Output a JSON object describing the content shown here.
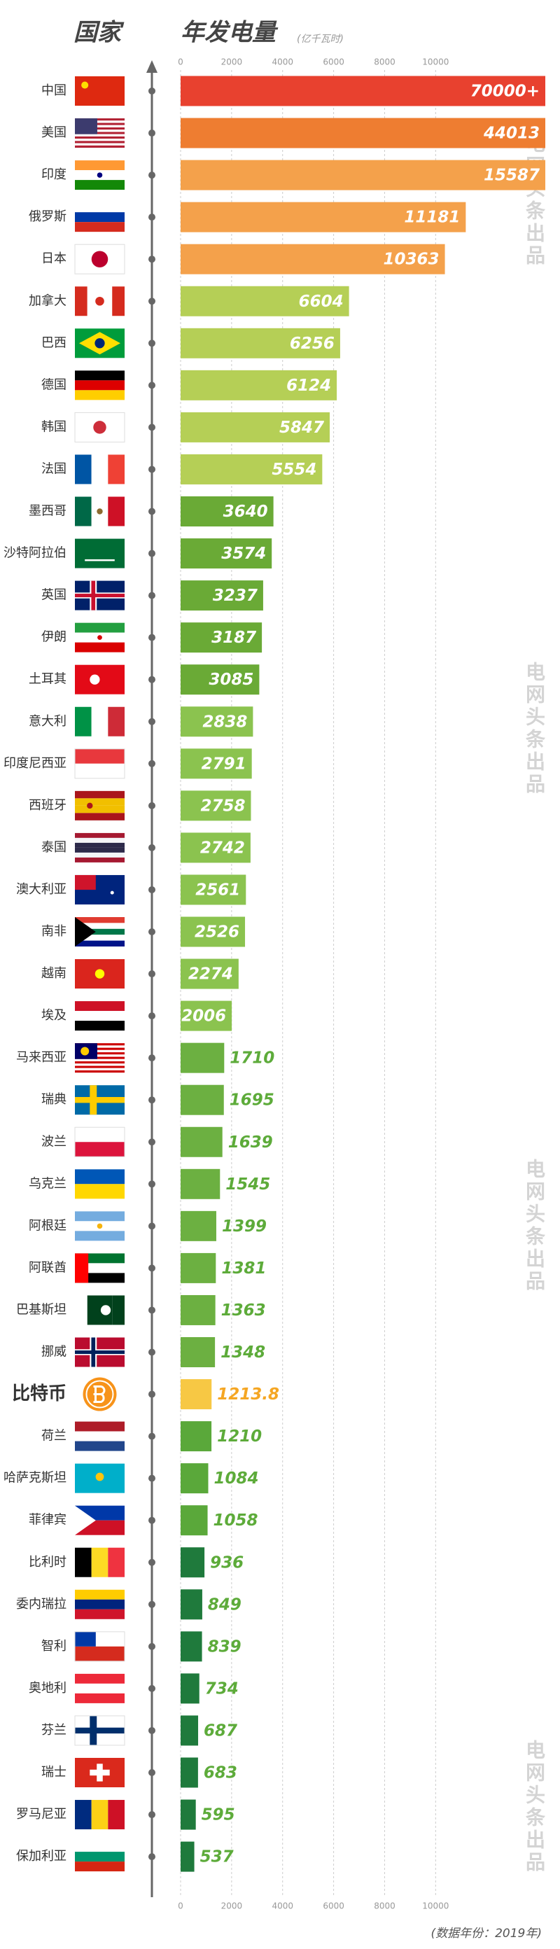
{
  "chart_data": {
    "type": "bar",
    "orientation": "horizontal",
    "title": "年发电量",
    "category_header": "国家",
    "unit": "(亿千瓦时)",
    "footnote": "(数据年份：2019年)",
    "watermark": "电网头条出品",
    "categories": [
      "中国",
      "美国",
      "印度",
      "俄罗斯",
      "日本",
      "加拿大",
      "巴西",
      "德国",
      "韩国",
      "法国",
      "墨西哥",
      "沙特阿拉伯",
      "英国",
      "伊朗",
      "土耳其",
      "意大利",
      "印度尼西亚",
      "西班牙",
      "泰国",
      "澳大利亚",
      "南非",
      "越南",
      "埃及",
      "马来西亚",
      "瑞典",
      "波兰",
      "乌克兰",
      "阿根廷",
      "阿联酋",
      "巴基斯坦",
      "挪威",
      "比特币",
      "荷兰",
      "哈萨克斯坦",
      "菲律宾",
      "比利时",
      "委内瑞拉",
      "智利",
      "奥地利",
      "芬兰",
      "瑞士",
      "罗马尼亚",
      "保加利亚"
    ],
    "values": [
      70000,
      44013,
      15587,
      11181,
      10363,
      6604,
      6256,
      6124,
      5847,
      5554,
      3640,
      3574,
      3237,
      3187,
      3085,
      2838,
      2791,
      2758,
      2742,
      2561,
      2526,
      2274,
      2006,
      1710,
      1695,
      1639,
      1545,
      1399,
      1381,
      1363,
      1348,
      1213.8,
      1210,
      1084,
      1058,
      936,
      849,
      839,
      734,
      687,
      683,
      595,
      537
    ],
    "value_labels": [
      "70000+",
      "44013",
      "15587",
      "11181",
      "10363",
      "6604",
      "6256",
      "6124",
      "5847",
      "5554",
      "3640",
      "3574",
      "3237",
      "3187",
      "3085",
      "2838",
      "2791",
      "2758",
      "2742",
      "2561",
      "2526",
      "2274",
      "2006",
      "1710",
      "1695",
      "1639",
      "1545",
      "1399",
      "1381",
      "1363",
      "1348",
      "1213.8",
      "1210",
      "1084",
      "1058",
      "936",
      "849",
      "839",
      "734",
      "687",
      "683",
      "595",
      "537"
    ],
    "colors": [
      "#e8412f",
      "#ee7d31",
      "#f4a14b",
      "#f4a14b",
      "#f4a14b",
      "#b5cf56",
      "#b5cf56",
      "#b5cf56",
      "#b5cf56",
      "#b5cf56",
      "#6aaa36",
      "#6aaa36",
      "#6aaa36",
      "#6aaa36",
      "#6aaa36",
      "#8bc34f",
      "#8bc34f",
      "#8bc34f",
      "#8bc34f",
      "#8bc34f",
      "#8bc34f",
      "#8bc34f",
      "#8bc34f",
      "#6cb041",
      "#6cb041",
      "#6cb041",
      "#6cb041",
      "#6cb041",
      "#6cb041",
      "#6cb041",
      "#6cb041",
      "#f7c844",
      "#5aa83a",
      "#5aa83a",
      "#5aa83a",
      "#1f7a3c",
      "#1f7a3c",
      "#1f7a3c",
      "#1f7a3c",
      "#1f7a3c",
      "#1f7a3c",
      "#1f7a3c",
      "#1f7a3c"
    ],
    "label_colors": [
      "#fff",
      "#fff",
      "#fff",
      "#fff",
      "#fff",
      "#fff",
      "#fff",
      "#fff",
      "#fff",
      "#fff",
      "#fff",
      "#fff",
      "#fff",
      "#fff",
      "#fff",
      "#fff",
      "#fff",
      "#fff",
      "#fff",
      "#fff",
      "#fff",
      "#fff",
      "#fff",
      "#5dab3a",
      "#5dab3a",
      "#5dab3a",
      "#5dab3a",
      "#5dab3a",
      "#5dab3a",
      "#5dab3a",
      "#5dab3a",
      "#f5a623",
      "#5dab3a",
      "#5dab3a",
      "#5dab3a",
      "#5dab3a",
      "#5dab3a",
      "#5dab3a",
      "#5dab3a",
      "#5dab3a",
      "#5dab3a",
      "#5dab3a",
      "#5dab3a"
    ],
    "category_colors": [
      "#333",
      "#333",
      "#333",
      "#333",
      "#333",
      "#333",
      "#333",
      "#333",
      "#333",
      "#333",
      "#333",
      "#333",
      "#333",
      "#333",
      "#333",
      "#333",
      "#333",
      "#333",
      "#333",
      "#333",
      "#333",
      "#333",
      "#333",
      "#333",
      "#333",
      "#333",
      "#333",
      "#333",
      "#333",
      "#333",
      "#333",
      "#f5a623",
      "#333",
      "#333",
      "#333",
      "#333",
      "#333",
      "#333",
      "#333",
      "#333",
      "#333",
      "#333",
      "#333"
    ],
    "xlim": [
      0,
      14300
    ],
    "xticks": [
      0,
      2000,
      4000,
      6000,
      8000,
      10000
    ],
    "grid": true
  }
}
